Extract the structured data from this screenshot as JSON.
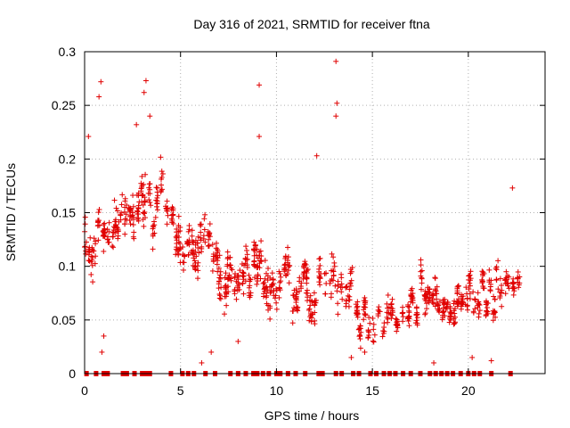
{
  "chart_data": {
    "type": "scatter",
    "title": "Day 316 of 2021, SRMTID for receiver ftna",
    "xlabel": "GPS time / hours",
    "ylabel": "SRMTID / TECUs",
    "xlim": [
      0,
      24
    ],
    "ylim": [
      0,
      0.3
    ],
    "xticks": [
      0,
      5,
      10,
      15,
      20
    ],
    "yticks": [
      0,
      0.05,
      0.1,
      0.15,
      0.2,
      0.25,
      0.3
    ],
    "xtick_labels": [
      "0",
      "5",
      "10",
      "15",
      "20"
    ],
    "ytick_labels": [
      "0",
      "0.05",
      "0.1",
      "0.15",
      "0.2",
      "0.25",
      "0.3"
    ],
    "grid": true,
    "marker": "+",
    "color": "#e00000",
    "zero_x": [
      0.1,
      0.6,
      1.0,
      1.2,
      2.0,
      2.2,
      2.6,
      3.0,
      3.2,
      3.4,
      4.5,
      5.1,
      5.4,
      5.7,
      6.3,
      6.8,
      7.6,
      8.0,
      8.4,
      8.8,
      9.0,
      9.3,
      9.6,
      10.0,
      10.2,
      10.6,
      11.0,
      11.5,
      12.2,
      12.4,
      13.1,
      13.4,
      14.0,
      14.3,
      14.9,
      15.2,
      15.6,
      15.9,
      16.2,
      16.6,
      17.0,
      17.5,
      18.0,
      18.3,
      18.6,
      18.9,
      19.2,
      19.6,
      20.0,
      20.3,
      20.6,
      21.2,
      22.2
    ]
  }
}
